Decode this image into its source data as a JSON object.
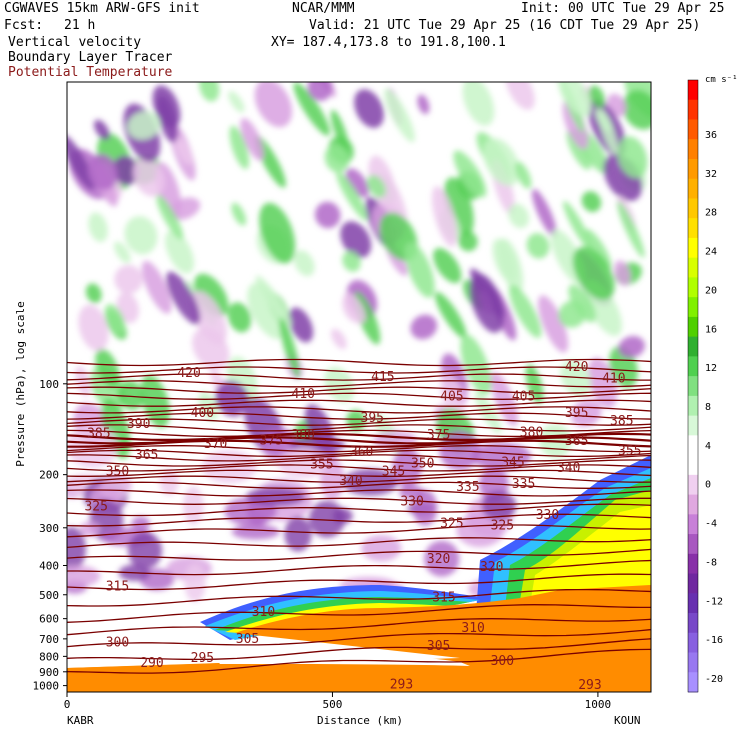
{
  "header": {
    "model": "CGWAVES 15km ARW-GFS init",
    "center": "NCAR/MMM",
    "init": "Init: 00 UTC Tue 29 Apr 25",
    "fcst_label": "Fcst:",
    "fcst_value": "21 h",
    "valid": "Valid: 21 UTC Tue 29 Apr 25 (16 CDT Tue 29 Apr 25)",
    "field1": "Vertical velocity",
    "field2": "Boundary Layer Tracer",
    "field3": "Potential Temperature",
    "xy": "XY= 187.4,173.8 to 191.8,100.1"
  },
  "colors": {
    "theta_contour": "#7a0000",
    "theta_label": "#8b1a1a",
    "terrain": "#ff8c00"
  },
  "chart_data": {
    "type": "heatmap",
    "title": "Vertical velocity / Boundary Layer Tracer / Potential Temperature cross-section",
    "xlabel": "Distance (km)",
    "ylabel": "Pressure (hPa), log scale",
    "xlim": [
      0,
      1100
    ],
    "ylim": [
      1050,
      10
    ],
    "y_scale": "log",
    "x_ticks": [
      0,
      500,
      1000
    ],
    "y_ticks": [
      100,
      200,
      300,
      400,
      500,
      600,
      700,
      800,
      900,
      1000
    ],
    "endpoint_left": "KABR",
    "endpoint_right": "KOUN",
    "colorbar": {
      "unit": "cm s⁻¹",
      "labels": [
        36,
        32,
        28,
        24,
        20,
        16,
        12,
        8,
        4,
        0,
        -4,
        -8,
        -12,
        -16,
        -20
      ],
      "colors": [
        "#ff0000",
        "#ff3300",
        "#ff5a00",
        "#ff8000",
        "#ff9a00",
        "#ffb000",
        "#ffc800",
        "#ffe000",
        "#ffff00",
        "#d8ff00",
        "#b0ff00",
        "#80f000",
        "#50d000",
        "#30b030",
        "#50d050",
        "#80e080",
        "#b0f0b0",
        "#d8f8d8",
        "#ffffff",
        "#ffffff",
        "#f0d0f0",
        "#e0a8e0",
        "#c880d8",
        "#a858c0",
        "#8830a8",
        "#7028a0",
        "#6830b0",
        "#7848c8",
        "#8860e0",
        "#9878f0",
        "#a890ff"
      ]
    },
    "theta_labels": [
      {
        "value": 420,
        "x": 230,
        "p": 92
      },
      {
        "value": 415,
        "x": 595,
        "p": 95
      },
      {
        "value": 420,
        "x": 960,
        "p": 88
      },
      {
        "value": 410,
        "x": 1030,
        "p": 96
      },
      {
        "value": 410,
        "x": 445,
        "p": 108
      },
      {
        "value": 405,
        "x": 725,
        "p": 110
      },
      {
        "value": 405,
        "x": 860,
        "p": 110
      },
      {
        "value": 400,
        "x": 255,
        "p": 125
      },
      {
        "value": 395,
        "x": 575,
        "p": 130
      },
      {
        "value": 395,
        "x": 960,
        "p": 125
      },
      {
        "value": 390,
        "x": 135,
        "p": 136
      },
      {
        "value": 385,
        "x": 60,
        "p": 146
      },
      {
        "value": 385,
        "x": 1045,
        "p": 133
      },
      {
        "value": 380,
        "x": 445,
        "p": 148
      },
      {
        "value": 375,
        "x": 700,
        "p": 148
      },
      {
        "value": 380,
        "x": 875,
        "p": 145
      },
      {
        "value": 375,
        "x": 385,
        "p": 154
      },
      {
        "value": 370,
        "x": 280,
        "p": 158
      },
      {
        "value": 365,
        "x": 960,
        "p": 155
      },
      {
        "value": 365,
        "x": 150,
        "p": 172
      },
      {
        "value": 360,
        "x": 555,
        "p": 168
      },
      {
        "value": 355,
        "x": 480,
        "p": 185
      },
      {
        "value": 350,
        "x": 670,
        "p": 184
      },
      {
        "value": 345,
        "x": 840,
        "p": 182
      },
      {
        "value": 340,
        "x": 945,
        "p": 190
      },
      {
        "value": 355,
        "x": 1060,
        "p": 167
      },
      {
        "value": 350,
        "x": 95,
        "p": 195
      },
      {
        "value": 345,
        "x": 615,
        "p": 195
      },
      {
        "value": 340,
        "x": 535,
        "p": 210
      },
      {
        "value": 335,
        "x": 755,
        "p": 220
      },
      {
        "value": 335,
        "x": 860,
        "p": 215
      },
      {
        "value": 330,
        "x": 650,
        "p": 245
      },
      {
        "value": 330,
        "x": 905,
        "p": 272
      },
      {
        "value": 325,
        "x": 55,
        "p": 255
      },
      {
        "value": 325,
        "x": 725,
        "p": 290
      },
      {
        "value": 325,
        "x": 820,
        "p": 295
      },
      {
        "value": 320,
        "x": 700,
        "p": 380
      },
      {
        "value": 320,
        "x": 800,
        "p": 405
      },
      {
        "value": 315,
        "x": 95,
        "p": 470
      },
      {
        "value": 315,
        "x": 710,
        "p": 510
      },
      {
        "value": 310,
        "x": 370,
        "p": 570
      },
      {
        "value": 310,
        "x": 765,
        "p": 645
      },
      {
        "value": 305,
        "x": 340,
        "p": 700
      },
      {
        "value": 305,
        "x": 700,
        "p": 740
      },
      {
        "value": 300,
        "x": 95,
        "p": 720
      },
      {
        "value": 300,
        "x": 820,
        "p": 830
      },
      {
        "value": 295,
        "x": 255,
        "p": 810
      },
      {
        "value": 290,
        "x": 160,
        "p": 840
      },
      {
        "value": 293,
        "x": 630,
        "p": 990
      },
      {
        "value": 293,
        "x": 985,
        "p": 995
      }
    ]
  }
}
